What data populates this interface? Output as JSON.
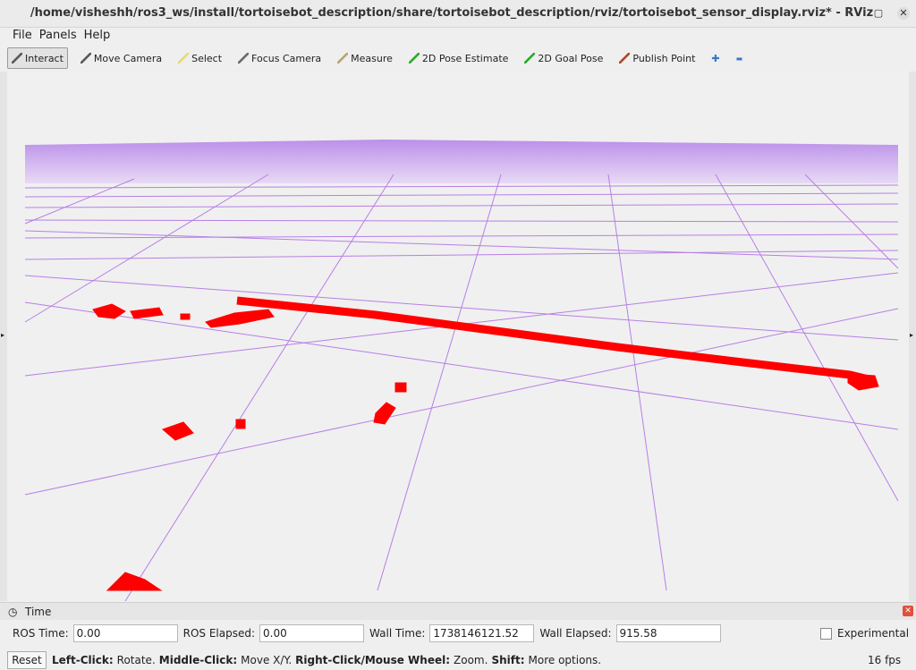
{
  "window": {
    "title": "/home/visheshh/ros3_ws/install/tortoisebot_description/share/tortoisebot_description/rviz/tortoisebot_sensor_display.rviz* - RViz"
  },
  "menu": [
    "File",
    "Panels",
    "Help"
  ],
  "toolbar": [
    "Interact",
    "Move Camera",
    "Select",
    "Focus Camera",
    "Measure",
    "2D Pose Estimate",
    "2D Goal Pose",
    "Publish Point"
  ],
  "time_panel": {
    "title": "Time",
    "fields": [
      {
        "label": "ROS Time:",
        "value": "0.00"
      },
      {
        "label": "ROS Elapsed:",
        "value": "0.00"
      },
      {
        "label": "Wall Time:",
        "value": "1738146121.52"
      },
      {
        "label": "Wall Elapsed:",
        "value": "915.58"
      }
    ],
    "experimental": "Experimental"
  },
  "status": {
    "reset": "Reset",
    "hints": [
      {
        "key": "Left-Click:",
        "text": "Rotate."
      },
      {
        "key": "Middle-Click:",
        "text": "Move X/Y."
      },
      {
        "key": "Right-Click/Mouse Wheel:",
        "text": "Zoom."
      },
      {
        "key": "Shift:",
        "text": "More options."
      }
    ],
    "fps": "16 fps"
  }
}
